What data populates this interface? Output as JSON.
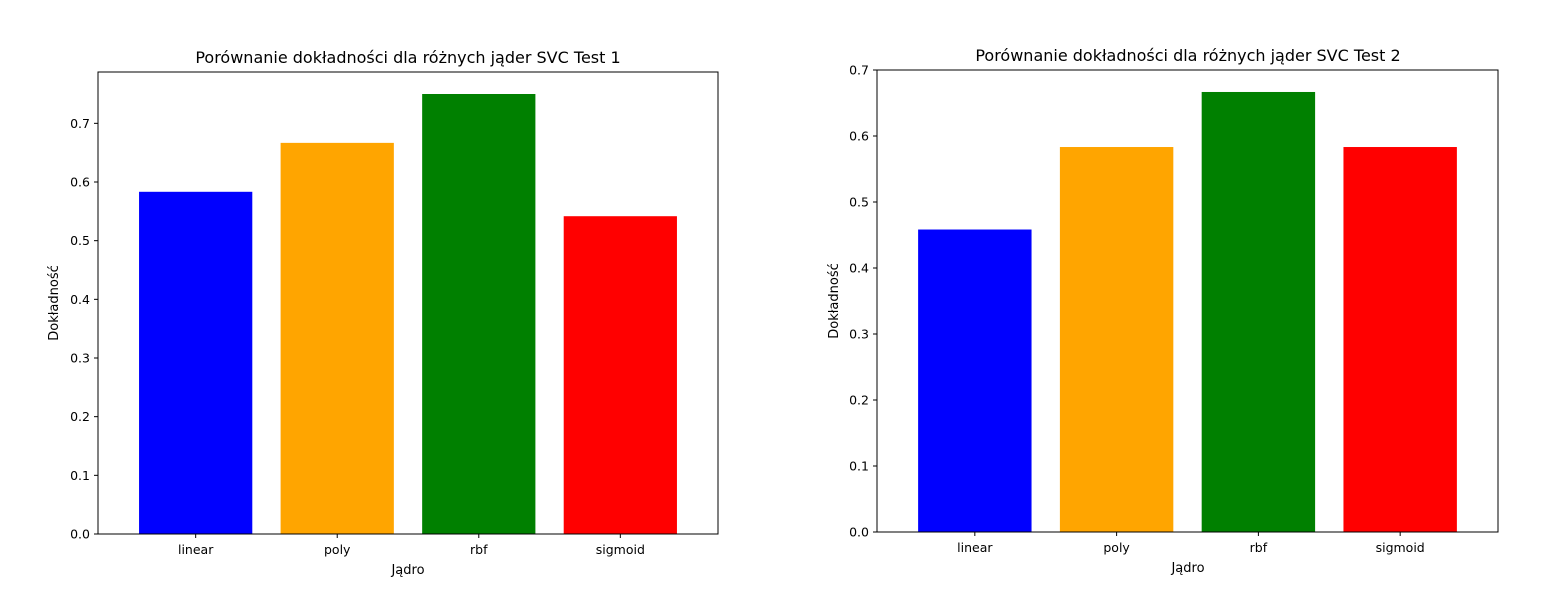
{
  "chart_data": [
    {
      "type": "bar",
      "title": "Porównanie dokładności dla różnych jąder SVC Test 1",
      "xlabel": "Jądro",
      "ylabel": "Dokładność",
      "categories": [
        "linear",
        "poly",
        "rbf",
        "sigmoid"
      ],
      "values": [
        0.5833,
        0.6667,
        0.75,
        0.5417
      ],
      "colors": [
        "#0000ff",
        "#ffa500",
        "#008000",
        "#ff0000"
      ],
      "ylim": [
        0,
        0.7875
      ],
      "yticks": [
        0.0,
        0.1,
        0.2,
        0.3,
        0.4,
        0.5,
        0.6,
        0.7
      ],
      "grid": false
    },
    {
      "type": "bar",
      "title": "Porównanie dokładności dla różnych jąder SVC Test 2",
      "xlabel": "Jądro",
      "ylabel": "Dokładność",
      "categories": [
        "linear",
        "poly",
        "rbf",
        "sigmoid"
      ],
      "values": [
        0.4583,
        0.5833,
        0.6667,
        0.5833
      ],
      "colors": [
        "#0000ff",
        "#ffa500",
        "#008000",
        "#ff0000"
      ],
      "ylim": [
        0,
        0.7
      ],
      "yticks": [
        0.0,
        0.1,
        0.2,
        0.3,
        0.4,
        0.5,
        0.6,
        0.7
      ],
      "grid": false
    }
  ]
}
